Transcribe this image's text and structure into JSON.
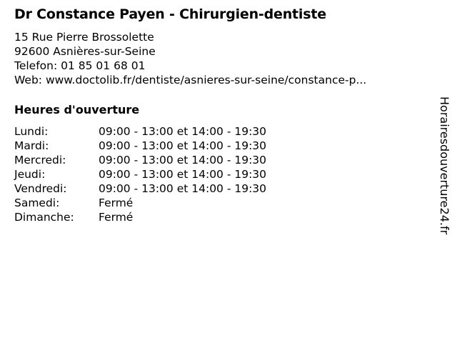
{
  "title": "Dr Constance Payen - Chirurgien-dentiste",
  "address": {
    "street": "15 Rue Pierre Brossolette",
    "city": "92600 Asnières-sur-Seine",
    "phone": "Telefon: 01 85 01 68 01",
    "web": "Web: www.doctolib.fr/dentiste/asnieres-sur-seine/constance-p..."
  },
  "hours_heading": "Heures d'ouverture",
  "hours": [
    {
      "day": "Lundi:",
      "time": "09:00 - 13:00 et 14:00 - 19:30"
    },
    {
      "day": "Mardi:",
      "time": "09:00 - 13:00 et 14:00 - 19:30"
    },
    {
      "day": "Mercredi:",
      "time": "09:00 - 13:00 et 14:00 - 19:30"
    },
    {
      "day": "Jeudi:",
      "time": "09:00 - 13:00 et 14:00 - 19:30"
    },
    {
      "day": "Vendredi:",
      "time": "09:00 - 13:00 et 14:00 - 19:30"
    },
    {
      "day": "Samedi:",
      "time": "Fermé"
    },
    {
      "day": "Dimanche:",
      "time": "Fermé"
    }
  ],
  "watermark": "Horairesdouverture24.fr"
}
